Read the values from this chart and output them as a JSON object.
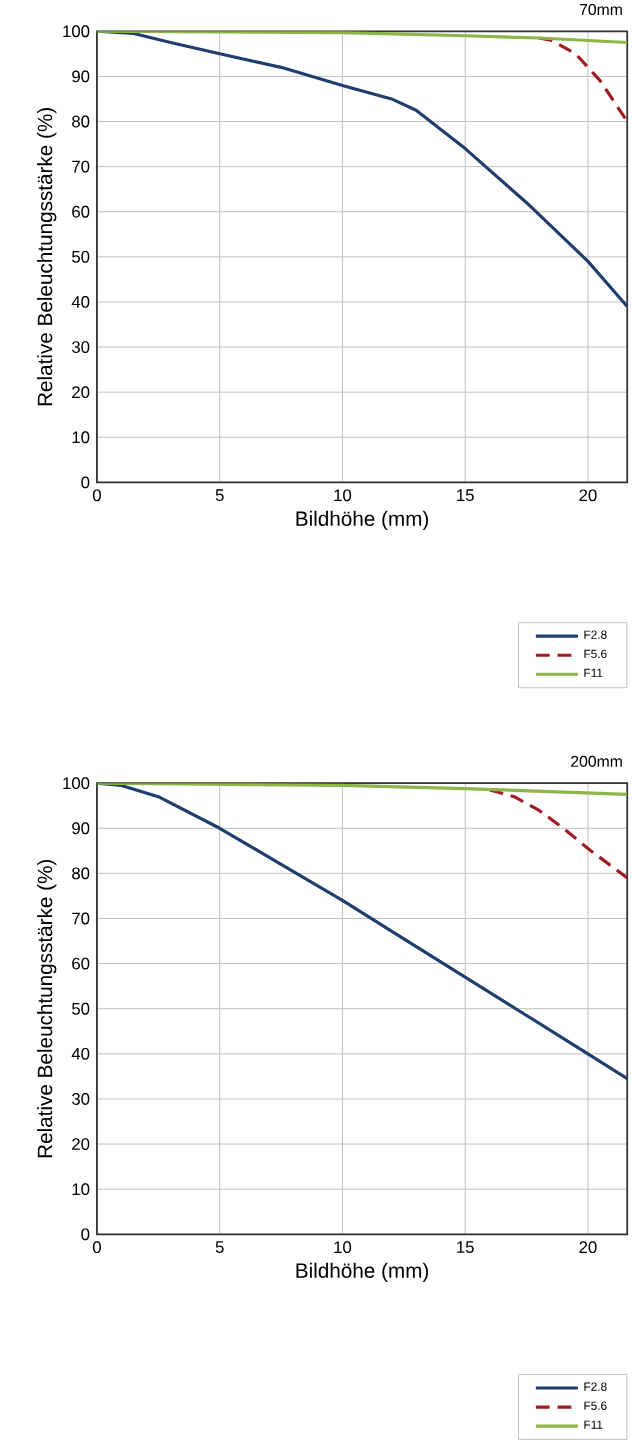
{
  "chart_data": [
    {
      "type": "line",
      "title": "70mm",
      "xlabel": "Bildhöhe (mm)",
      "ylabel": "Relative Beleuchtungsstärke (%)",
      "xlim": [
        0,
        21.6
      ],
      "ylim": [
        0,
        100
      ],
      "xticks": [
        0,
        5,
        10,
        15,
        20
      ],
      "yticks": [
        0,
        10,
        20,
        30,
        40,
        50,
        60,
        70,
        80,
        90,
        100
      ],
      "grid": true,
      "legend": "bottom right",
      "series": [
        {
          "name": "F2.8",
          "color": "#1f3e6e",
          "line_style": "solid",
          "x": [
            0,
            1.5,
            3,
            5,
            7.5,
            10,
            12,
            13,
            15,
            17.5,
            20,
            21.6
          ],
          "values": [
            100,
            99.5,
            97.5,
            95,
            92,
            88,
            85,
            82.5,
            74,
            62,
            49,
            39
          ]
        },
        {
          "name": "F5.6",
          "color": "#a01c22",
          "line_style": "dashed",
          "x": [
            18,
            18.5,
            19.5,
            20.5,
            21.6
          ],
          "values": [
            98.5,
            98,
            95,
            89,
            80
          ]
        },
        {
          "name": "F11",
          "color": "#8db548",
          "line_style": "solid",
          "x": [
            0,
            10,
            15,
            18,
            21.6
          ],
          "values": [
            100,
            99.7,
            99,
            98.5,
            97.5
          ]
        }
      ]
    },
    {
      "type": "line",
      "title": "200mm",
      "xlabel": "Bildhöhe (mm)",
      "ylabel": "Relative Beleuchtungsstärke (%)",
      "xlim": [
        0,
        21.6
      ],
      "ylim": [
        0,
        100
      ],
      "xticks": [
        0,
        5,
        10,
        15,
        20
      ],
      "yticks": [
        0,
        10,
        20,
        30,
        40,
        50,
        60,
        70,
        80,
        90,
        100
      ],
      "grid": true,
      "legend": "bottom right",
      "series": [
        {
          "name": "F2.8",
          "color": "#1f3e6e",
          "line_style": "solid",
          "x": [
            0,
            1,
            2.5,
            5,
            7.5,
            10,
            12.5,
            15,
            17.5,
            20,
            21.6
          ],
          "values": [
            100,
            99.5,
            97,
            90,
            82,
            74,
            65.5,
            57,
            48.5,
            40,
            34.5
          ]
        },
        {
          "name": "F5.6",
          "color": "#a01c22",
          "line_style": "dashed",
          "x": [
            16,
            17,
            18,
            19,
            20,
            21.6
          ],
          "values": [
            98.5,
            97,
            94,
            90,
            85.5,
            79
          ]
        },
        {
          "name": "F11",
          "color": "#8db548",
          "line_style": "solid",
          "x": [
            0,
            10,
            15,
            21.6
          ],
          "values": [
            100,
            99.5,
            98.8,
            97.5
          ]
        }
      ]
    }
  ]
}
